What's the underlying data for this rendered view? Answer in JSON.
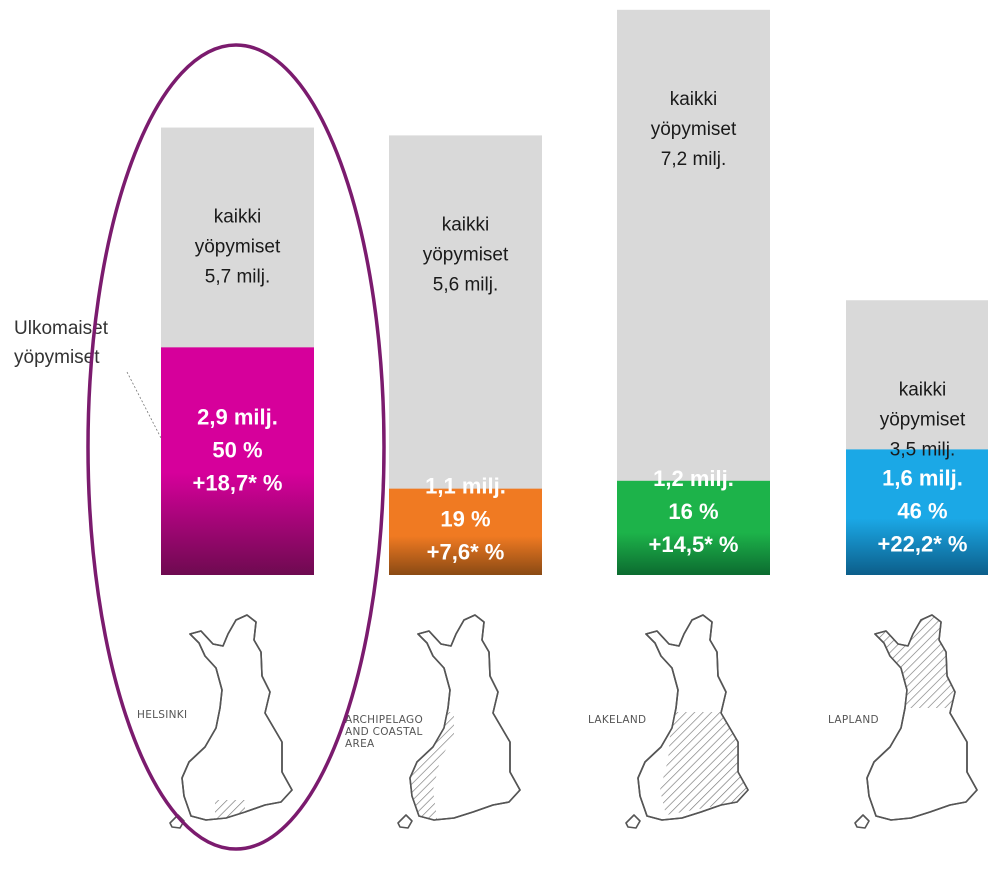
{
  "chart_data": {
    "type": "bar",
    "categories": [
      "HELSINKI",
      "ARCHIPELAGO AND COASTAL AREA",
      "LAKELAND",
      "LAPLAND"
    ],
    "region_label_lines": [
      [
        "HELSINKI"
      ],
      [
        "ARCHIPELAGO",
        "AND COASTAL",
        "AREA"
      ],
      [
        "LAKELAND"
      ],
      [
        "LAPLAND"
      ]
    ],
    "units": "milj.",
    "series": [
      {
        "name": "kaikki yöpymiset",
        "values": [
          5.7,
          5.6,
          7.2,
          3.5
        ]
      },
      {
        "name": "Ulkomaiset yöpymiset",
        "values": [
          2.9,
          1.1,
          1.2,
          1.6
        ]
      }
    ],
    "share_of_total": [
      50,
      19,
      16,
      46
    ],
    "change": [
      "+18,7* %",
      "+7,6* %",
      "+14,5* %",
      "+22,2* %"
    ],
    "total_label_lines": [
      [
        "kaikki",
        "yöpymiset",
        "5,7 milj."
      ],
      [
        "kaikki",
        "yöpymiset",
        "5,6 milj."
      ],
      [
        "kaikki",
        "yöpymiset",
        "7,2 milj."
      ],
      [
        "kaikki",
        "yöpymiset",
        "3,5 milj."
      ]
    ],
    "foreign_label_lines": [
      [
        "2,9 milj.",
        "50 %",
        "+18,7* %"
      ],
      [
        "1,1 milj.",
        "19 %",
        "+7,6* %"
      ],
      [
        "1,2 milj.",
        "16 %",
        "+14,5* %"
      ],
      [
        "1,6 milj.",
        "46 %",
        "+22,2* %"
      ]
    ],
    "colors": {
      "total": "#d9d9d9",
      "foreign": [
        "#d6009b",
        "#f07a22",
        "#1db34a",
        "#1ba8e6"
      ],
      "foreign_dark": [
        "#6e0a50",
        "#8a4a14",
        "#0c6b30",
        "#0c5e8a"
      ],
      "highlight_ellipse": "#7b1b6e"
    },
    "annotation": {
      "lines": [
        "Ulkomaiset",
        "yöpymiset"
      ]
    },
    "highlighted_category": "HELSINKI",
    "region_map_highlight": [
      "south-tip",
      "south-west-coast",
      "east-lakes",
      "north"
    ]
  }
}
